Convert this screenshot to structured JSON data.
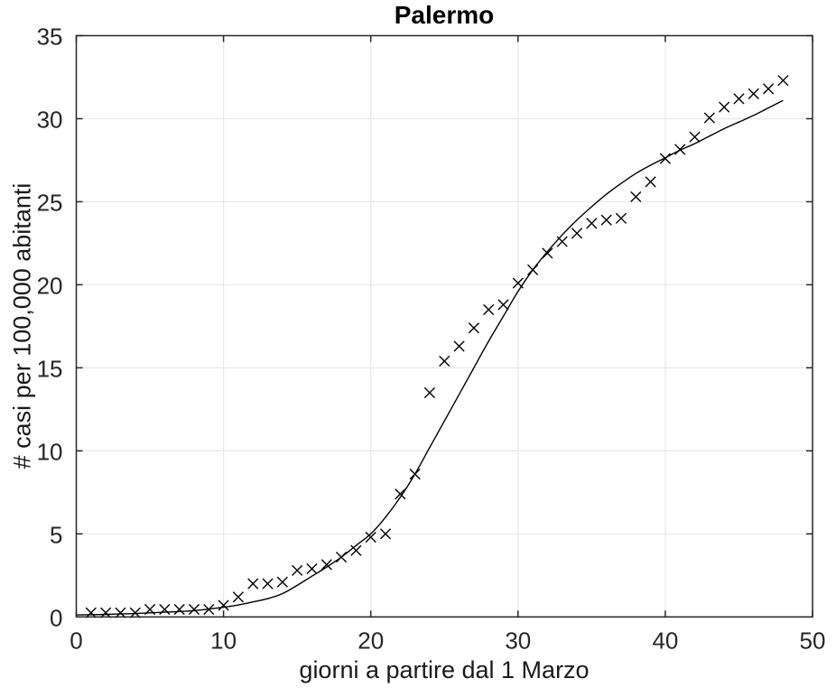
{
  "title": "Palermo",
  "xlabel": "giorni a partire dal 1 Marzo",
  "ylabel": "# casi per 100,000 abitanti",
  "chart_data": {
    "type": "scatter",
    "title": "Palermo",
    "xlabel": "giorni a partire dal 1 Marzo",
    "ylabel": "# casi per 100,000 abitanti",
    "xlim": [
      0,
      50
    ],
    "ylim": [
      0,
      35
    ],
    "xticks": [
      0,
      10,
      20,
      30,
      40,
      50
    ],
    "yticks": [
      0,
      5,
      10,
      15,
      20,
      25,
      30,
      35
    ],
    "grid": true,
    "legend": "none",
    "series": [
      {
        "name": "observed-cases-markers",
        "type": "scatter",
        "marker": "x",
        "x": [
          1,
          2,
          3,
          4,
          5,
          6,
          7,
          8,
          9,
          10,
          11,
          12,
          13,
          14,
          15,
          16,
          17,
          18,
          19,
          20,
          21,
          22,
          23,
          24,
          25,
          26,
          27,
          28,
          29,
          30,
          31,
          32,
          33,
          34,
          35,
          36,
          37,
          38,
          39,
          40,
          41,
          42,
          43,
          44,
          45,
          46,
          47,
          48
        ],
        "y": [
          0.25,
          0.25,
          0.25,
          0.25,
          0.45,
          0.45,
          0.45,
          0.45,
          0.45,
          0.7,
          1.2,
          2.0,
          2.0,
          2.1,
          2.8,
          2.9,
          3.15,
          3.6,
          4.0,
          4.8,
          5.0,
          7.4,
          8.6,
          13.5,
          15.4,
          16.3,
          17.4,
          18.5,
          18.8,
          20.1,
          20.9,
          21.9,
          22.6,
          23.1,
          23.7,
          23.9,
          24.0,
          25.3,
          26.2,
          27.6,
          28.15,
          28.9,
          30.05,
          30.7,
          31.2,
          31.5,
          31.8,
          32.3
        ]
      },
      {
        "name": "logistic-fit-curve",
        "type": "line",
        "x": [
          0,
          2,
          4,
          6,
          8,
          10,
          11,
          12,
          13,
          14,
          15,
          16,
          17,
          18,
          19,
          20,
          21,
          22,
          23,
          24,
          25,
          26,
          27,
          28,
          29,
          30,
          31,
          32,
          33,
          34,
          35,
          36,
          37,
          38,
          39,
          40,
          41,
          42,
          43,
          44,
          45,
          46,
          47,
          48
        ],
        "y": [
          0.12,
          0.15,
          0.2,
          0.28,
          0.38,
          0.58,
          0.72,
          0.9,
          1.1,
          1.4,
          1.9,
          2.45,
          3.0,
          3.6,
          4.3,
          5.0,
          6.0,
          7.2,
          8.6,
          10.2,
          11.8,
          13.4,
          15.0,
          16.6,
          18.1,
          19.6,
          20.9,
          22.0,
          23.0,
          23.9,
          24.7,
          25.45,
          26.1,
          26.7,
          27.2,
          27.65,
          28.1,
          28.5,
          28.95,
          29.4,
          29.8,
          30.2,
          30.65,
          31.1
        ]
      }
    ],
    "colors": {
      "marker": "#000000",
      "curve": "#000000",
      "grid": "#e8e8e8",
      "axis": "#262626",
      "tick_label": "#262626",
      "background": "#ffffff"
    }
  }
}
